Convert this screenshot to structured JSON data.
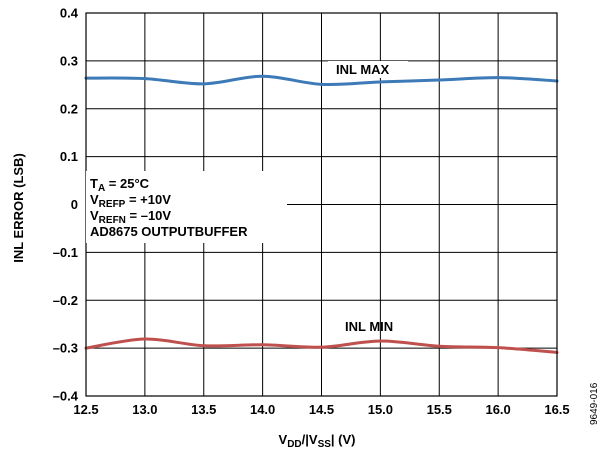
{
  "figure_id": "9649-016",
  "annotation": {
    "ta": {
      "main": "T",
      "sub": "A",
      "rest": " = 25°C"
    },
    "vrefp": {
      "main": "V",
      "sub": "REFP",
      "rest": " = +10V"
    },
    "vrefn": {
      "main": "V",
      "sub": "REFN",
      "rest": " = –10V"
    },
    "buffer": "AD8675 OUTPUTBUFFER"
  },
  "x_axis_title": {
    "a": "V",
    "a_sub": "DD",
    "b": "/|V",
    "b_sub": "SS",
    "c": "| (V)"
  },
  "chart_data": {
    "type": "line",
    "xlabel": "VDD/|VSS| (V)",
    "ylabel": "INL ERROR (LSB)",
    "xlim": [
      12.5,
      16.5
    ],
    "ylim": [
      -0.4,
      0.4
    ],
    "x_ticks": [
      "12.5",
      "13.0",
      "13.5",
      "14.0",
      "14.5",
      "15.0",
      "15.5",
      "16.0",
      "16.5"
    ],
    "y_ticks": [
      "0.4",
      "0.3",
      "0.2",
      "0.1",
      "0",
      "–0.1",
      "–0.2",
      "–0.3",
      "–0.4"
    ],
    "grid": true,
    "series": [
      {
        "name": "INL MAX",
        "color": "#3d7ab8",
        "x": [
          12.5,
          13.0,
          13.5,
          14.0,
          14.5,
          15.0,
          15.5,
          16.0,
          16.5
        ],
        "values": [
          0.264,
          0.263,
          0.252,
          0.268,
          0.251,
          0.256,
          0.26,
          0.265,
          0.258
        ]
      },
      {
        "name": "INL MIN",
        "color": "#c0504d",
        "x": [
          12.5,
          13.0,
          13.5,
          14.0,
          14.5,
          15.0,
          15.5,
          16.0,
          16.5
        ],
        "values": [
          -0.3,
          -0.281,
          -0.295,
          -0.293,
          -0.298,
          -0.285,
          -0.296,
          -0.299,
          -0.309
        ]
      }
    ]
  }
}
